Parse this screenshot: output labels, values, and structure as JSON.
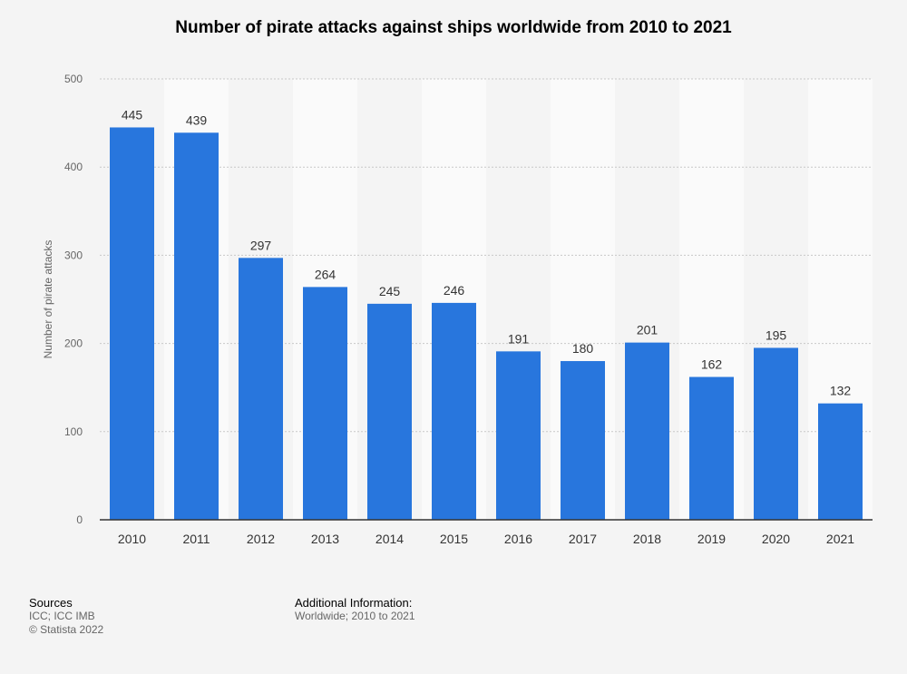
{
  "chart_data": {
    "type": "bar",
    "title": "Number of pirate attacks against ships worldwide from 2010 to 2021",
    "xlabel": "",
    "ylabel": "Number of pirate attacks",
    "categories": [
      "2010",
      "2011",
      "2012",
      "2013",
      "2014",
      "2015",
      "2016",
      "2017",
      "2018",
      "2019",
      "2020",
      "2021"
    ],
    "values": [
      445,
      439,
      297,
      264,
      245,
      246,
      191,
      180,
      201,
      162,
      195,
      132
    ],
    "ylim": [
      0,
      500
    ],
    "yticks": [
      0,
      100,
      200,
      300,
      400,
      500
    ],
    "grid": true,
    "data_labels": true,
    "bar_color": "#2876dd"
  },
  "footer": {
    "sources_heading": "Sources",
    "sources_text": "ICC; ICC IMB",
    "copyright": "© Statista 2022",
    "additional_heading": "Additional Information:",
    "additional_text": "Worldwide; 2010 to 2021"
  }
}
